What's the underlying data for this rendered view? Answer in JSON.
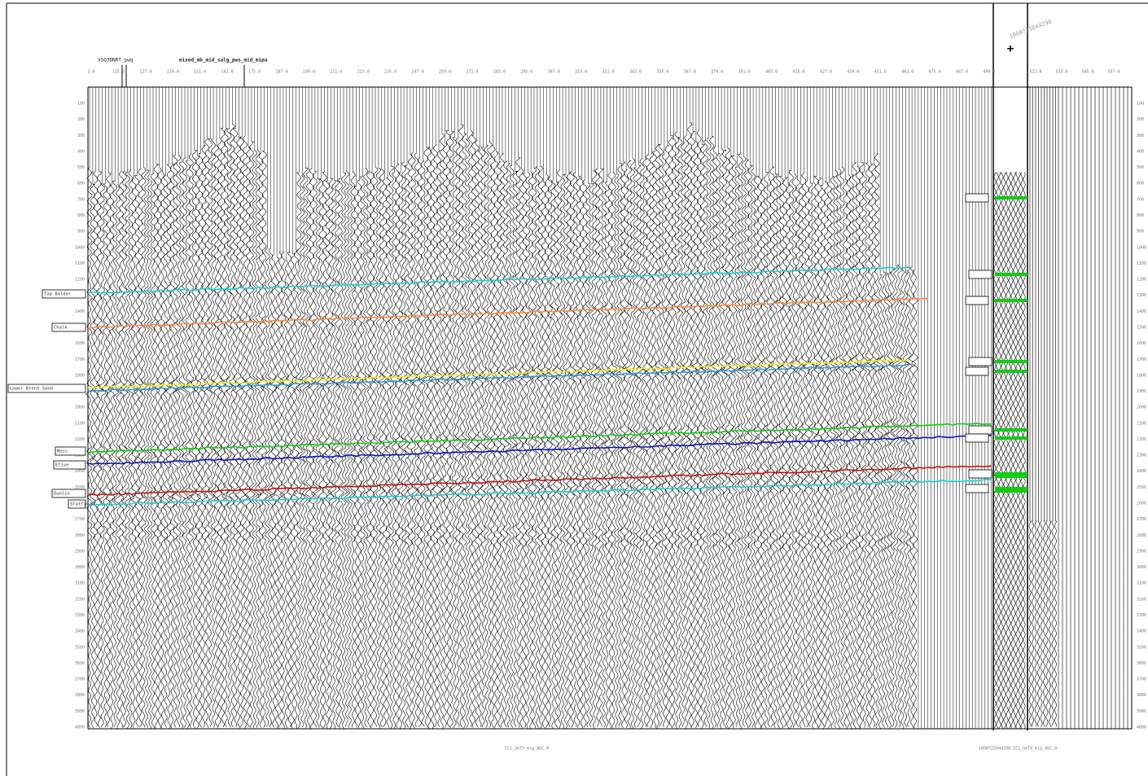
{
  "header": {
    "left_label": "VSQ3DNRT_pwq",
    "right_label": "mixed_mb_mid_salg_pws_mid_mipa",
    "well_marker": "+",
    "well_name": "1000725044298"
  },
  "top_axis": [
    "3.0",
    "115.0",
    "127.0",
    "139.0",
    "151.0",
    "163.0",
    "175.0",
    "187.0",
    "199.0",
    "211.0",
    "223.0",
    "235.0",
    "247.0",
    "259.0",
    "271.0",
    "283.0",
    "295.0",
    "307.0",
    "319.0",
    "331.0",
    "343.0",
    "355.0",
    "367.0",
    "379.0",
    "391.0",
    "403.0",
    "415.0",
    "427.0",
    "439.0",
    "451.0",
    "463.0",
    "475.0",
    "487.0",
    "499.0"
  ],
  "right_axis": [
    "521.0",
    "533.0",
    "545.0",
    "557.0"
  ],
  "time_axis": [
    "100",
    "200",
    "300",
    "400",
    "500",
    "600",
    "700",
    "800",
    "900",
    "1000",
    "1100",
    "1200",
    "1300",
    "1400",
    "1500",
    "1600",
    "1700",
    "1800",
    "1900",
    "2000",
    "2100",
    "2200",
    "2300",
    "2400",
    "2500",
    "2600",
    "2700",
    "2800",
    "2900",
    "3000",
    "3100",
    "3200",
    "3300",
    "3400",
    "3500",
    "3600",
    "3700",
    "3800",
    "3900",
    "4000"
  ],
  "horizons": [
    "Top Balder",
    "Chalk",
    "Lower Brent Sand",
    "Ness",
    "Etive",
    "Dunlin",
    "Statfjord"
  ],
  "footer": {
    "section_label": "IC1_SeTV_mig_AGC.0",
    "well_section_label": "1000725044298 IC1_SeTV_mig_AGC.0"
  }
}
